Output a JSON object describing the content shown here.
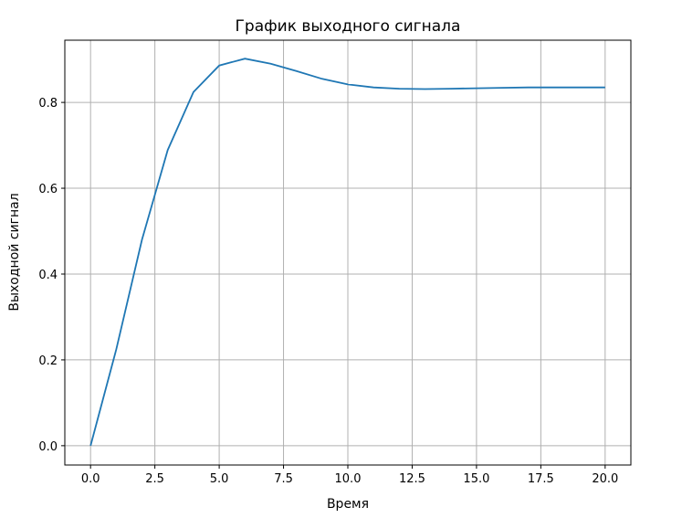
{
  "chart_data": {
    "type": "line",
    "title": "График выходного сигнала",
    "xlabel": "Время",
    "ylabel": "Выходной сигнал",
    "xlim": [
      -1,
      21
    ],
    "ylim": [
      -0.045,
      0.945
    ],
    "grid": true,
    "xticks": [
      0,
      2.5,
      5,
      7.5,
      10,
      12.5,
      15,
      17.5,
      20
    ],
    "xtick_labels": [
      "0.0",
      "2.5",
      "5.0",
      "7.5",
      "10.0",
      "12.5",
      "15.0",
      "17.5",
      "20.0"
    ],
    "yticks": [
      0,
      0.2,
      0.4,
      0.6,
      0.8
    ],
    "ytick_labels": [
      "0.0",
      "0.2",
      "0.4",
      "0.6",
      "0.8"
    ],
    "color": "#1f77b4",
    "x": [
      0,
      1,
      2,
      3,
      4,
      5,
      6,
      7,
      8,
      9,
      10,
      11,
      12,
      13,
      14,
      15,
      16,
      17,
      18,
      19,
      20
    ],
    "y": [
      0,
      0.225,
      0.48,
      0.689,
      0.824,
      0.886,
      0.902,
      0.89,
      0.873,
      0.855,
      0.842,
      0.835,
      0.832,
      0.831,
      0.832,
      0.833,
      0.834,
      0.835,
      0.835,
      0.835,
      0.835
    ]
  }
}
